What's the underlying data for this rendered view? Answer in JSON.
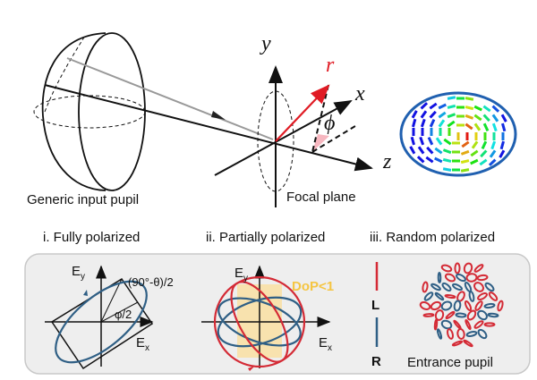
{
  "top": {
    "pupil_label": "Generic input pupil",
    "focal_label": "Focal plane",
    "axis_y": "y",
    "axis_x": "x",
    "axis_z": "z",
    "vector_r": "r",
    "angle_phi": "ϕ"
  },
  "sections": [
    {
      "title": "i. Fully polarized"
    },
    {
      "title": "ii. Partially polarized"
    },
    {
      "title": "iii. Random polarized"
    }
  ],
  "panel_i": {
    "ey": "E",
    "ey_sub": "y",
    "ex": "E",
    "ex_sub": "x",
    "angle1": "(90°-θ)/2",
    "angle2": "φ/2"
  },
  "panel_ii": {
    "ey": "E",
    "ey_sub": "y",
    "ex": "E",
    "ex_sub": "x",
    "dop": "DoP<1"
  },
  "panel_iii": {
    "left": "L",
    "right": "R",
    "pupil_label": "Entrance pupil"
  },
  "colors": {
    "red": "#d42a35",
    "blue": "#2f5f85",
    "yellow": "#f5c542",
    "panel_bg": "#eeeeee"
  }
}
